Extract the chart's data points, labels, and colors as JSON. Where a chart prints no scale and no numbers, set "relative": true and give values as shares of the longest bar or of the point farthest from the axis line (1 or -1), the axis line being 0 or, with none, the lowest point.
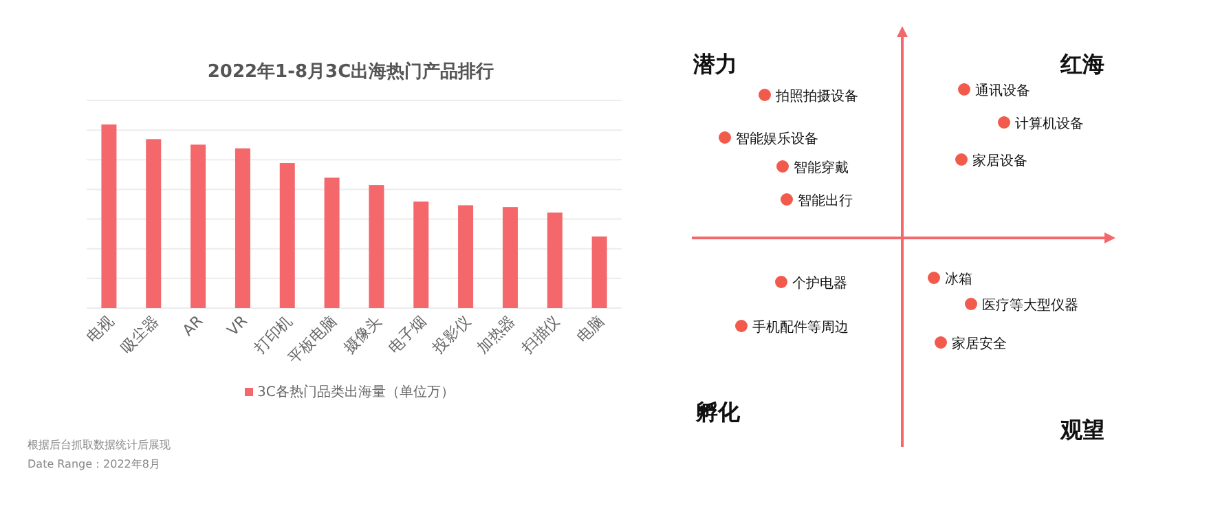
{
  "chart_data": [
    {
      "type": "bar",
      "title": "2022年1-8月3C出海热门产品排行",
      "relative": true,
      "grid": "y",
      "legend": "bottom",
      "categories": [
        "电视",
        "吸尘器",
        "AR",
        "VR",
        "打印机",
        "平板电脑",
        "摄像头",
        "电子烟",
        "投影仪",
        "加热器",
        "扫描仪",
        "电脑"
      ],
      "series": [
        {
          "name": "3C各热门品类出海量（单位万）",
          "color": "#f4676b",
          "values": [
            1,
            0.92,
            0.89,
            0.87,
            0.79,
            0.71,
            0.67,
            0.58,
            0.56,
            0.55,
            0.52,
            0.39
          ]
        }
      ],
      "annotations": [
        "根据后台抓取数据统计后展现",
        "Date Range：2022年8月"
      ]
    },
    {
      "type": "other",
      "annotations": [
        "潜力",
        "红海",
        "孵化",
        "观望",
        "拍照拍摄设备",
        "智能娱乐设备",
        "智能穿戴",
        "智能出行",
        "通讯设备",
        "计算机设备",
        "家居设备",
        "个护电器",
        "手机配件等周边",
        "冰箱",
        "医疗等大型仪器",
        "家居安全"
      ]
    }
  ]
}
